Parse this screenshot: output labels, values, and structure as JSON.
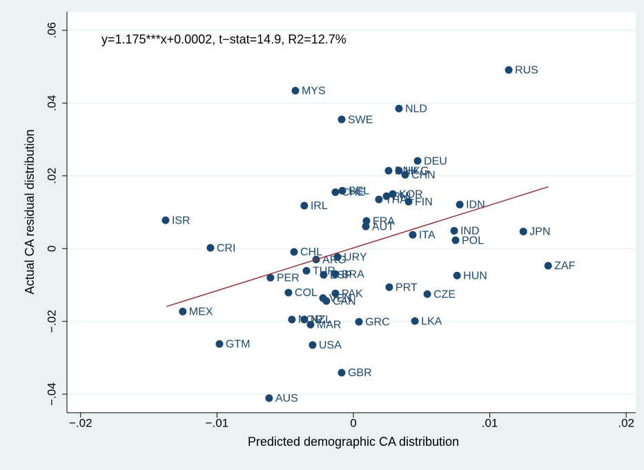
{
  "chart_data": {
    "type": "scatter",
    "annotation": "y=1.175***x+0.0002, t−stat=14.9, R2=12.7%",
    "x_label": "Predicted demographic CA distribution",
    "y_label": "Actual CA residual distribution",
    "xlim": [
      -0.021,
      0.0207
    ],
    "ylim": [
      -0.0451,
      0.0651
    ],
    "xticks": [
      {
        "value": -0.02,
        "label": "−.02"
      },
      {
        "value": -0.01,
        "label": "−.01"
      },
      0,
      {
        "value": 0.01,
        "label": ".01"
      },
      {
        "value": 0.02,
        "label": ".02"
      }
    ],
    "yticks": [
      {
        "value": -0.04,
        "label": "−.04"
      },
      {
        "value": -0.02,
        "label": "−.02"
      },
      0,
      {
        "value": 0.02,
        "label": ".02"
      },
      {
        "value": 0.04,
        "label": ".04"
      },
      {
        "value": 0.06,
        "label": ".06"
      }
    ],
    "grid": true,
    "color": "#1a476f",
    "labels": [
      "RUS",
      "MYS",
      "NLD",
      "SWE",
      "DEU",
      "DNK",
      "HKG",
      "CHN",
      "CHE",
      "BEL",
      "THA",
      "PHL",
      "KOR",
      "FIN",
      "IDN",
      "IRL",
      "ISR",
      "FRA",
      "AUT",
      "IND",
      "JPN",
      "ITA",
      "POL",
      "CRI",
      "CHL",
      "URY",
      "ARG",
      "ZAF",
      "TUR",
      "ESP",
      "BRA",
      "HUN",
      "PER",
      "PRT",
      "COL",
      "PAK",
      "CZE",
      "VEN",
      "CAN",
      "MEX",
      "NOR",
      "NZL",
      "MAR",
      "GRC",
      "LKA",
      "GTM",
      "USA",
      "GBR",
      "AUS"
    ],
    "x": [
      0.01139,
      -0.00425,
      0.00334,
      -0.00086,
      0.00471,
      0.00258,
      0.00334,
      0.0038,
      -0.00132,
      -0.00081,
      0.00187,
      0.00243,
      0.00289,
      0.00405,
      0.0078,
      -0.0036,
      -0.01377,
      0.00096,
      0.00091,
      0.00739,
      0.01246,
      0.00435,
      0.00749,
      -0.01048,
      -0.00435,
      -0.00116,
      -0.00273,
      0.01428,
      -0.00344,
      -0.00218,
      -0.00132,
      0.0076,
      -0.00608,
      0.00263,
      -0.00476,
      -0.00132,
      0.00542,
      -0.00223,
      -0.00198,
      -0.01251,
      -0.00451,
      -0.0036,
      -0.00314,
      0.00041,
      0.00451,
      -0.00982,
      -0.00299,
      -0.00086,
      -0.00618
    ],
    "y": [
      0.0491,
      0.0434,
      0.0385,
      0.0355,
      0.0241,
      0.0214,
      0.0214,
      0.0203,
      0.0155,
      0.0159,
      0.0135,
      0.0144,
      0.015,
      0.0129,
      0.0121,
      0.0118,
      0.0078,
      0.0076,
      0.0061,
      0.0049,
      0.0047,
      0.0038,
      0.0023,
      0.0002,
      -0.0009,
      -0.0023,
      -0.003,
      -0.0047,
      -0.0061,
      -0.0072,
      -0.007,
      -0.0074,
      -0.008,
      -0.0106,
      -0.0121,
      -0.0123,
      -0.0125,
      -0.0136,
      -0.0144,
      -0.0173,
      -0.0195,
      -0.0195,
      -0.0209,
      -0.0201,
      -0.0199,
      -0.0262,
      -0.0265,
      -0.0341,
      -0.0411
    ],
    "fit_line": {
      "color": "#90353b",
      "x": [
        -0.0137,
        0.0143
      ],
      "y": [
        -0.0159,
        0.017
      ]
    }
  }
}
